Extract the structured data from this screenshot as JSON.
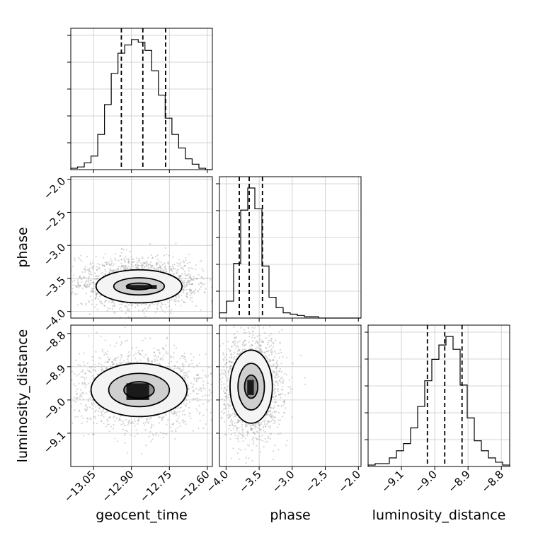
{
  "chart_data": {
    "type": "corner",
    "parameters": [
      {
        "name": "geocent_time",
        "xlabel": "geocent_time",
        "ylabel": "",
        "ticks": [
          -13.05,
          -12.9,
          -12.75,
          -12.6
        ],
        "tick_labels": [
          "−13.05",
          "−12.90",
          "−12.75",
          "−12.60"
        ],
        "range": [
          -13.14,
          -12.58
        ],
        "quantiles": [
          -12.94,
          -12.855,
          -12.765
        ]
      },
      {
        "name": "phase",
        "xlabel": "phase",
        "ylabel": "phase",
        "ticks": [
          -4.0,
          -3.5,
          -3.0,
          -2.5,
          -2.0
        ],
        "tick_labels": [
          "−4.0",
          "−3.5",
          "−3.0",
          "−2.5",
          "−2.0"
        ],
        "range": [
          -4.1,
          -1.96
        ],
        "quantiles": [
          -3.8,
          -3.65,
          -3.45
        ]
      },
      {
        "name": "luminosity_distance",
        "xlabel": "luminosity_distance",
        "ylabel": "luminosity_distance",
        "ticks": [
          -9.1,
          -9.0,
          -8.9,
          -8.8
        ],
        "tick_labels": [
          "−9.1",
          "−9.0",
          "−8.9",
          "−8.8"
        ],
        "range": [
          -9.2,
          -8.775
        ],
        "quantiles": [
          -9.022,
          -8.97,
          -8.918
        ]
      }
    ],
    "histograms": {
      "geocent_time": {
        "edges": [
          -13.14,
          -12.58
        ],
        "counts": [
          1,
          2,
          5,
          10,
          26,
          48,
          71,
          86,
          92,
          96,
          94,
          88,
          73,
          55,
          38,
          26,
          16,
          8,
          4,
          1,
          0
        ]
      },
      "phase": {
        "edges": [
          -4.1,
          -1.96
        ],
        "counts": [
          4,
          13,
          42,
          83,
          100,
          84,
          40,
          16,
          8,
          4,
          3,
          2,
          1,
          1,
          0,
          0,
          0,
          0,
          0,
          0
        ]
      },
      "luminosity_distance": {
        "edges": [
          -9.2,
          -8.775
        ],
        "counts": [
          1,
          2,
          2,
          6,
          11,
          16,
          27,
          42,
          60,
          75,
          85,
          91,
          82,
          57,
          34,
          18,
          11,
          6,
          3,
          1
        ]
      }
    },
    "pairs": [
      {
        "x": "geocent_time",
        "y": "phase",
        "center": [
          -12.87,
          -3.62
        ],
        "contour_half_widths": [
          [
            0.05,
            0.05
          ],
          [
            0.1,
            0.13
          ],
          [
            0.17,
            0.25
          ]
        ],
        "core": [
          [
            -12.92,
            -3.66,
            -12.8,
            -3.6
          ]
        ]
      },
      {
        "x": "geocent_time",
        "y": "luminosity_distance",
        "center": [
          -12.87,
          -8.97
        ],
        "contour_half_widths": [
          [
            0.06,
            0.025
          ],
          [
            0.12,
            0.05
          ],
          [
            0.19,
            0.08
          ]
        ],
        "core": [
          [
            -12.92,
            -9.0,
            -12.83,
            -8.95
          ]
        ]
      },
      {
        "x": "phase",
        "y": "luminosity_distance",
        "center": [
          -3.62,
          -8.96
        ],
        "contour_half_widths": [
          [
            0.1,
            0.035
          ],
          [
            0.2,
            0.07
          ],
          [
            0.32,
            0.11
          ]
        ],
        "core": [
          [
            -3.68,
            -8.985,
            -3.58,
            -8.94
          ]
        ]
      }
    ],
    "grid": true,
    "quantile_line_style": "dashed"
  }
}
